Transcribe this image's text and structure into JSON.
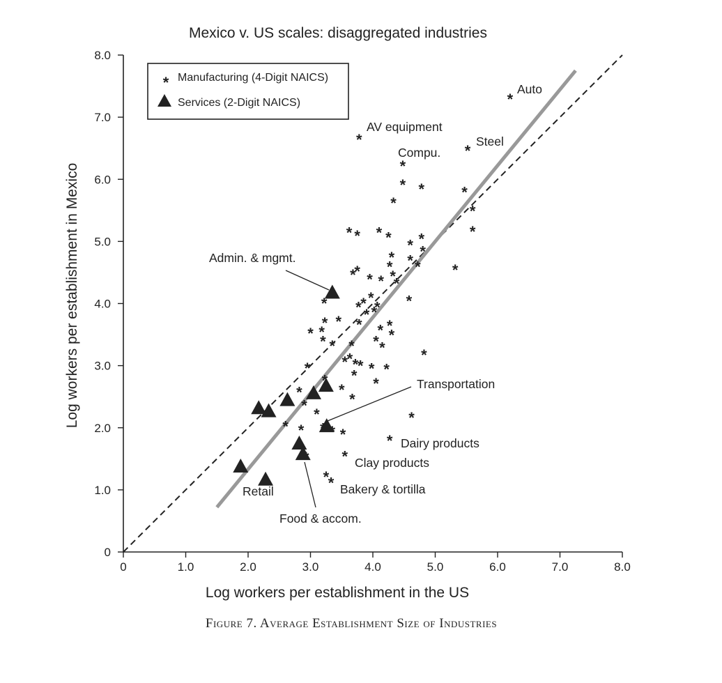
{
  "chart_data": {
    "type": "scatter",
    "title": "Mexico v. US scales: disaggregated industries",
    "xlabel": "Log workers per establishment in the US",
    "ylabel": "Log workers per establishment in Mexico",
    "xlim": [
      0,
      8
    ],
    "ylim": [
      0,
      8
    ],
    "x_ticks": [
      "0",
      "1.0",
      "2.0",
      "3.0",
      "4.0",
      "5.0",
      "6.0",
      "7.0",
      "8.0"
    ],
    "y_ticks": [
      "0",
      "1.0",
      "2.0",
      "3.0",
      "4.0",
      "5.0",
      "6.0",
      "7.0",
      "8.0"
    ],
    "legend_position": "top-left",
    "grid": false,
    "reference_lines": [
      {
        "style": "dashed",
        "color": "#222222",
        "x": [
          0,
          8
        ],
        "y": [
          0,
          8
        ]
      },
      {
        "style": "solid",
        "color": "#999999",
        "x": [
          1.5,
          7.25
        ],
        "y": [
          0.72,
          7.75
        ]
      }
    ],
    "series": [
      {
        "name": "Manufacturing (4-Digit NAICS)",
        "marker": "asterisk",
        "color": "#777777",
        "points": [
          [
            6.2,
            7.35
          ],
          [
            3.78,
            6.7
          ],
          [
            5.52,
            6.52
          ],
          [
            4.48,
            6.27
          ],
          [
            4.48,
            5.97
          ],
          [
            4.78,
            5.9
          ],
          [
            5.47,
            5.85
          ],
          [
            4.33,
            5.68
          ],
          [
            5.6,
            5.55
          ],
          [
            5.6,
            5.22
          ],
          [
            3.62,
            5.2
          ],
          [
            3.75,
            5.15
          ],
          [
            4.1,
            5.2
          ],
          [
            4.25,
            5.12
          ],
          [
            4.78,
            5.1
          ],
          [
            4.6,
            5.0
          ],
          [
            4.8,
            4.9
          ],
          [
            4.3,
            4.8
          ],
          [
            4.6,
            4.75
          ],
          [
            4.72,
            4.65
          ],
          [
            4.27,
            4.65
          ],
          [
            5.32,
            4.6
          ],
          [
            3.75,
            4.58
          ],
          [
            3.68,
            4.52
          ],
          [
            4.32,
            4.5
          ],
          [
            3.95,
            4.45
          ],
          [
            4.13,
            4.42
          ],
          [
            4.38,
            4.38
          ],
          [
            3.97,
            4.15
          ],
          [
            4.58,
            4.1
          ],
          [
            3.22,
            4.06
          ],
          [
            3.85,
            4.06
          ],
          [
            3.77,
            4.0
          ],
          [
            4.07,
            4.0
          ],
          [
            4.02,
            3.92
          ],
          [
            3.9,
            3.88
          ],
          [
            3.45,
            3.77
          ],
          [
            3.23,
            3.75
          ],
          [
            3.78,
            3.72
          ],
          [
            4.27,
            3.7
          ],
          [
            4.12,
            3.63
          ],
          [
            3.18,
            3.6
          ],
          [
            3.0,
            3.58
          ],
          [
            4.3,
            3.55
          ],
          [
            3.2,
            3.45
          ],
          [
            4.05,
            3.45
          ],
          [
            3.35,
            3.38
          ],
          [
            3.66,
            3.38
          ],
          [
            4.15,
            3.35
          ],
          [
            4.82,
            3.23
          ],
          [
            3.63,
            3.17
          ],
          [
            3.55,
            3.12
          ],
          [
            3.72,
            3.08
          ],
          [
            3.8,
            3.06
          ],
          [
            2.95,
            3.02
          ],
          [
            3.98,
            3.01
          ],
          [
            4.22,
            3.0
          ],
          [
            3.7,
            2.9
          ],
          [
            3.23,
            2.82
          ],
          [
            4.05,
            2.77
          ],
          [
            3.5,
            2.67
          ],
          [
            2.82,
            2.63
          ],
          [
            3.67,
            2.52
          ],
          [
            2.9,
            2.42
          ],
          [
            3.1,
            2.28
          ],
          [
            4.62,
            2.22
          ],
          [
            2.6,
            2.08
          ],
          [
            2.85,
            2.02
          ],
          [
            3.2,
            2.05
          ],
          [
            3.35,
            2.0
          ],
          [
            3.52,
            1.95
          ],
          [
            4.27,
            1.85
          ],
          [
            3.55,
            1.6
          ],
          [
            2.93,
            1.58
          ],
          [
            3.25,
            1.27
          ],
          [
            3.33,
            1.17
          ]
        ]
      },
      {
        "name": "Services (2-Digit NAICS)",
        "marker": "triangle",
        "color": "#222222",
        "points": [
          [
            3.35,
            4.18
          ],
          [
            3.25,
            2.68
          ],
          [
            3.05,
            2.56
          ],
          [
            2.63,
            2.45
          ],
          [
            2.17,
            2.32
          ],
          [
            2.33,
            2.27
          ],
          [
            3.26,
            2.03
          ],
          [
            2.82,
            1.75
          ],
          [
            2.88,
            1.58
          ],
          [
            1.88,
            1.38
          ],
          [
            2.28,
            1.17
          ]
        ]
      }
    ],
    "annotations": [
      {
        "text": "Auto",
        "x": 6.2,
        "y": 7.35
      },
      {
        "text": "AV equipment",
        "x": 3.78,
        "y": 6.7
      },
      {
        "text": "Steel",
        "x": 5.52,
        "y": 6.52
      },
      {
        "text": "Compu.",
        "x": 4.48,
        "y": 6.27
      },
      {
        "text": "Admin. & mgmt.",
        "x": 3.35,
        "y": 4.18
      },
      {
        "text": "Transportation",
        "x": 3.26,
        "y": 2.03
      },
      {
        "text": "Dairy products",
        "x": 4.27,
        "y": 1.85
      },
      {
        "text": "Clay products",
        "x": 3.55,
        "y": 1.6
      },
      {
        "text": "Bakery & tortilla",
        "x": 3.33,
        "y": 1.17
      },
      {
        "text": "Retail",
        "x": 2.28,
        "y": 1.17
      },
      {
        "text": "Food & accom.",
        "x": 2.88,
        "y": 1.58
      }
    ]
  },
  "caption": "Figure 7. Average Establishment Size of Industries"
}
